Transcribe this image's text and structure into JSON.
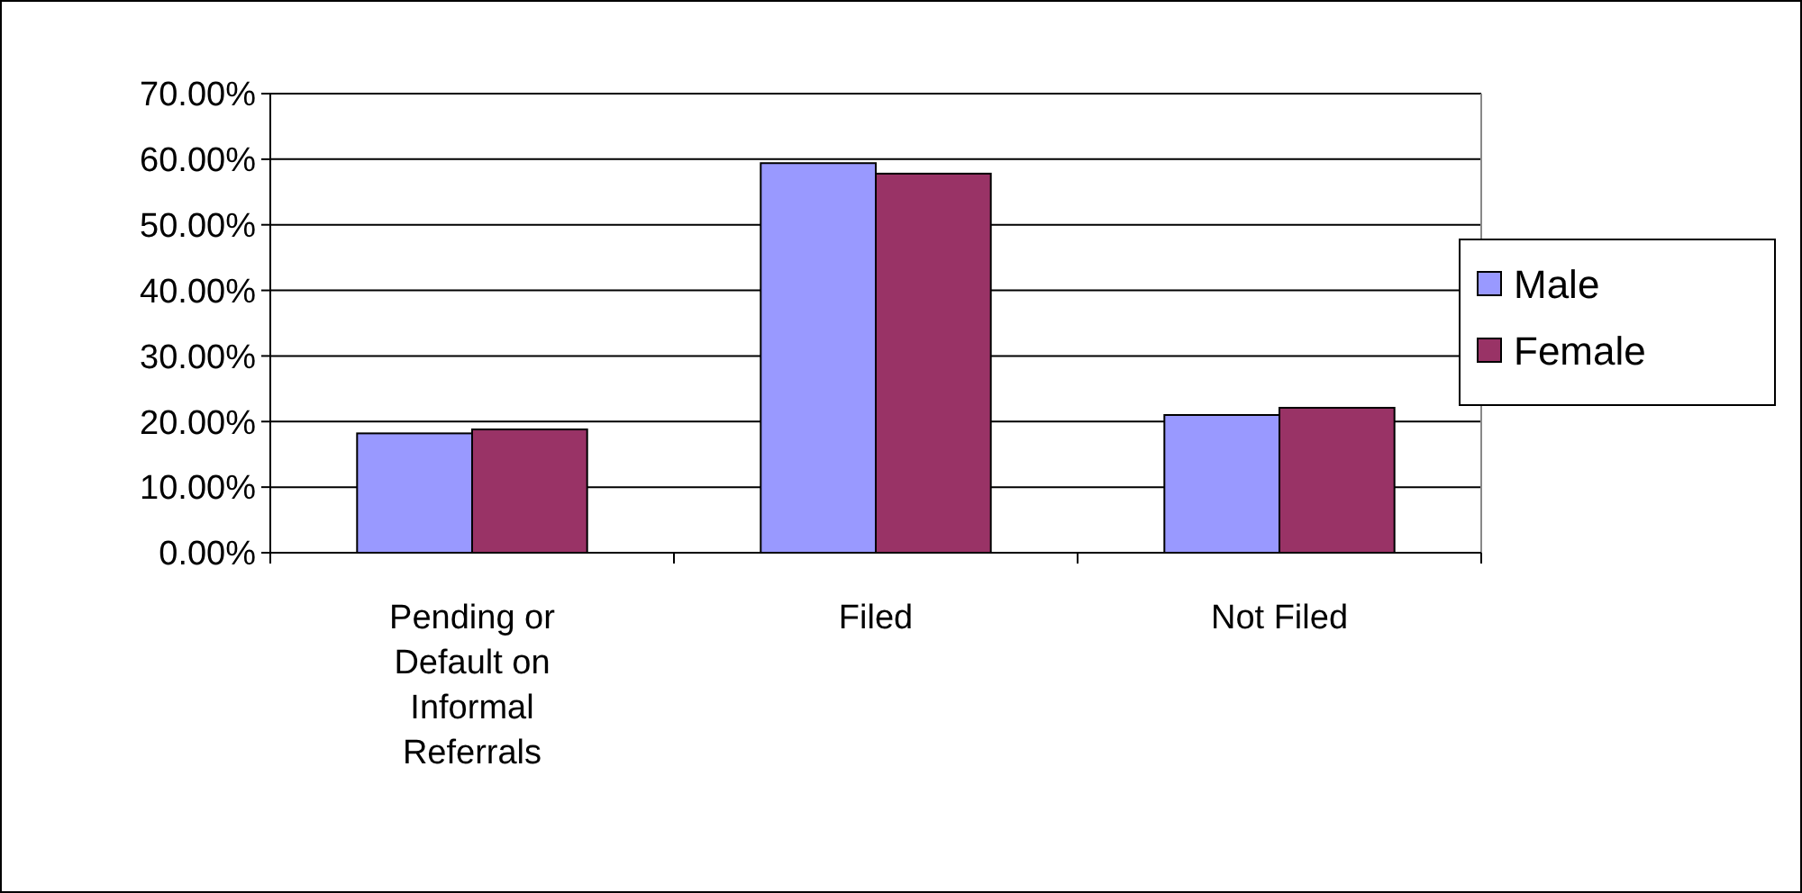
{
  "chart_data": {
    "type": "bar",
    "categories": [
      "Pending or Default on Informal Referrals",
      "Filed",
      "Not Filed"
    ],
    "series": [
      {
        "name": "Male",
        "color": "#9999ff",
        "values": [
          18.2,
          59.4,
          21.0
        ]
      },
      {
        "name": "Female",
        "color": "#993366",
        "values": [
          18.8,
          57.8,
          22.1
        ]
      }
    ],
    "ylim": [
      0,
      70
    ],
    "yticks": [
      {
        "value": 0,
        "label": "0.00%"
      },
      {
        "value": 10,
        "label": "10.00%"
      },
      {
        "value": 20,
        "label": "20.00%"
      },
      {
        "value": 30,
        "label": "30.00%"
      },
      {
        "value": 40,
        "label": "40.00%"
      },
      {
        "value": 50,
        "label": "50.00%"
      },
      {
        "value": 60,
        "label": "60.00%"
      },
      {
        "value": 70,
        "label": "70.00%"
      }
    ],
    "grid": "y",
    "legend": "right"
  }
}
